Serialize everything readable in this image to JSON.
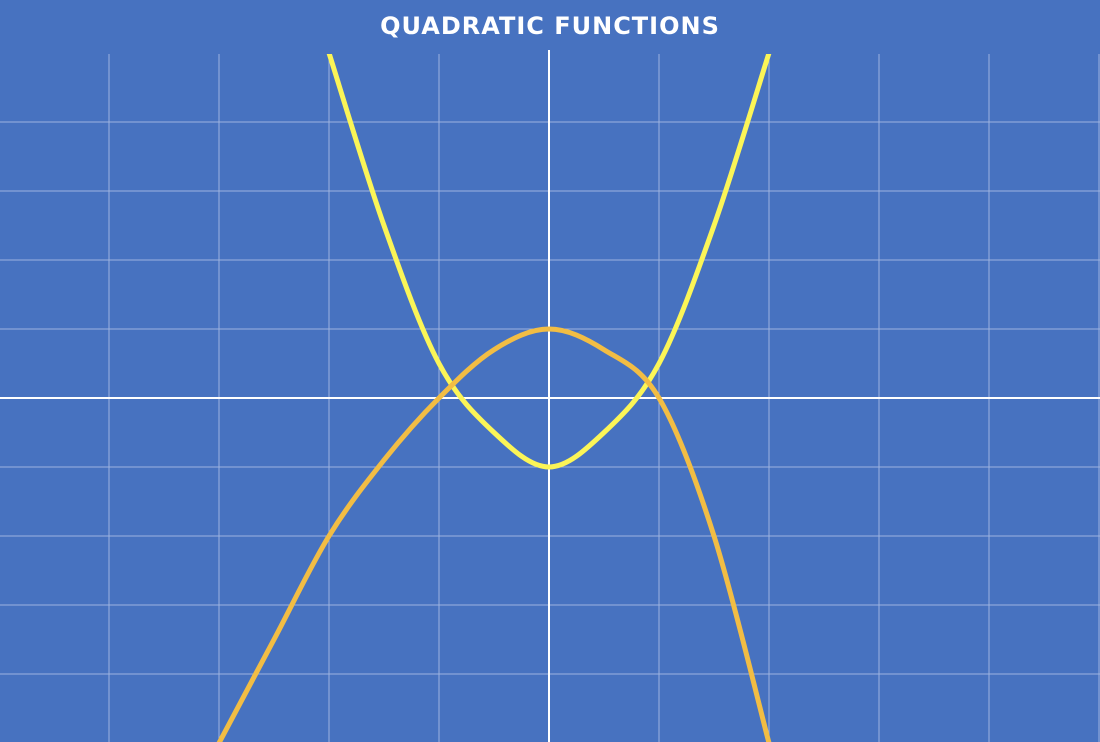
{
  "title": "QUADRATIC FUNCTIONS",
  "colors": {
    "background": "#4772c0",
    "grid": "#9db3df",
    "axis": "#ffffff",
    "title": "#ffffff"
  },
  "chart_data": {
    "type": "line",
    "title": "QUADRATIC FUNCTIONS",
    "xlabel": "",
    "ylabel": "",
    "xlim": [
      -5,
      5
    ],
    "ylim": [
      -5,
      5
    ],
    "grid": true,
    "x_step": 1,
    "y_step": 1,
    "series": [
      {
        "color": "#fbf557",
        "x": [
          -2,
          -1.5,
          -1,
          -0.5,
          0,
          0.5,
          1,
          1.5,
          2
        ],
        "y": [
          5,
          2.5,
          0.5,
          -0.5,
          -1,
          -0.5,
          0.5,
          2.5,
          5
        ]
      },
      {
        "color": "#f2bd44",
        "x": [
          -3,
          -2.5,
          -2,
          -1.5,
          -1,
          -0.5,
          0,
          0.5,
          1,
          1.5,
          2
        ],
        "y": [
          -5,
          -3.5,
          -2,
          -0.9,
          0,
          0.7,
          1,
          0.7,
          0,
          -2,
          -5
        ]
      }
    ]
  }
}
